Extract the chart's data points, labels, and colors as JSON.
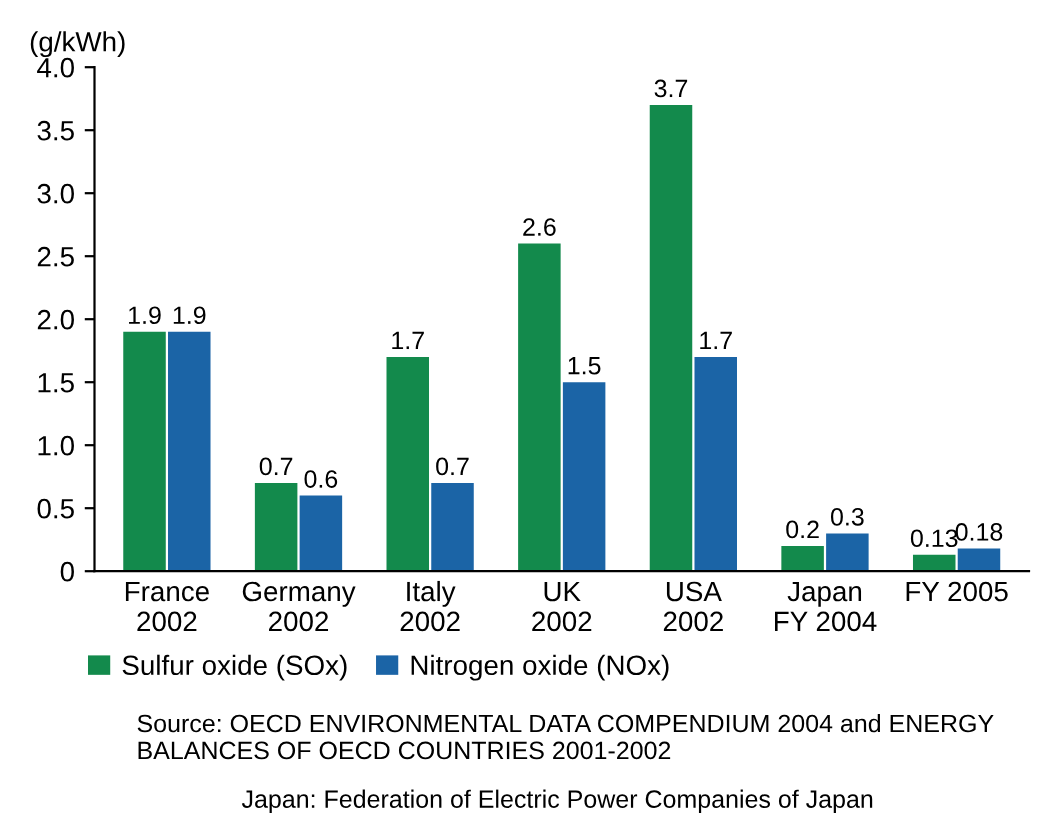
{
  "chart_data": {
    "type": "bar",
    "ylabel": "(g/kWh)",
    "categories": [
      "France\n2002",
      "Germany\n2002",
      "Italy\n2002",
      "UK\n2002",
      "USA\n2002",
      "Japan\nFY 2004",
      "FY 2005"
    ],
    "series": [
      {
        "name": "Sulfur oxide (SOx)",
        "color": "#138a4c",
        "values": [
          1.9,
          0.7,
          1.7,
          2.6,
          3.7,
          0.2,
          0.13
        ]
      },
      {
        "name": "Nitrogen oxide (NOx)",
        "color": "#1b64a6",
        "values": [
          1.9,
          0.6,
          0.7,
          1.5,
          1.7,
          0.3,
          0.18
        ]
      }
    ],
    "ylim": [
      0,
      4.0
    ],
    "yticks": [
      0,
      0.5,
      "1.0",
      1.5,
      "2.0",
      2.5,
      "3.0",
      3.5,
      "4.0"
    ],
    "data_labels": true,
    "legend": "bottom left",
    "grid": false,
    "annotations": [
      "Source: OECD ENVIRONMENTAL DATA COMPENDIUM 2004 and ENERGY BALANCES OF OECD COUNTRIES 2001-2002",
      "Japan: Federation of Electric Power Companies of Japan"
    ]
  }
}
